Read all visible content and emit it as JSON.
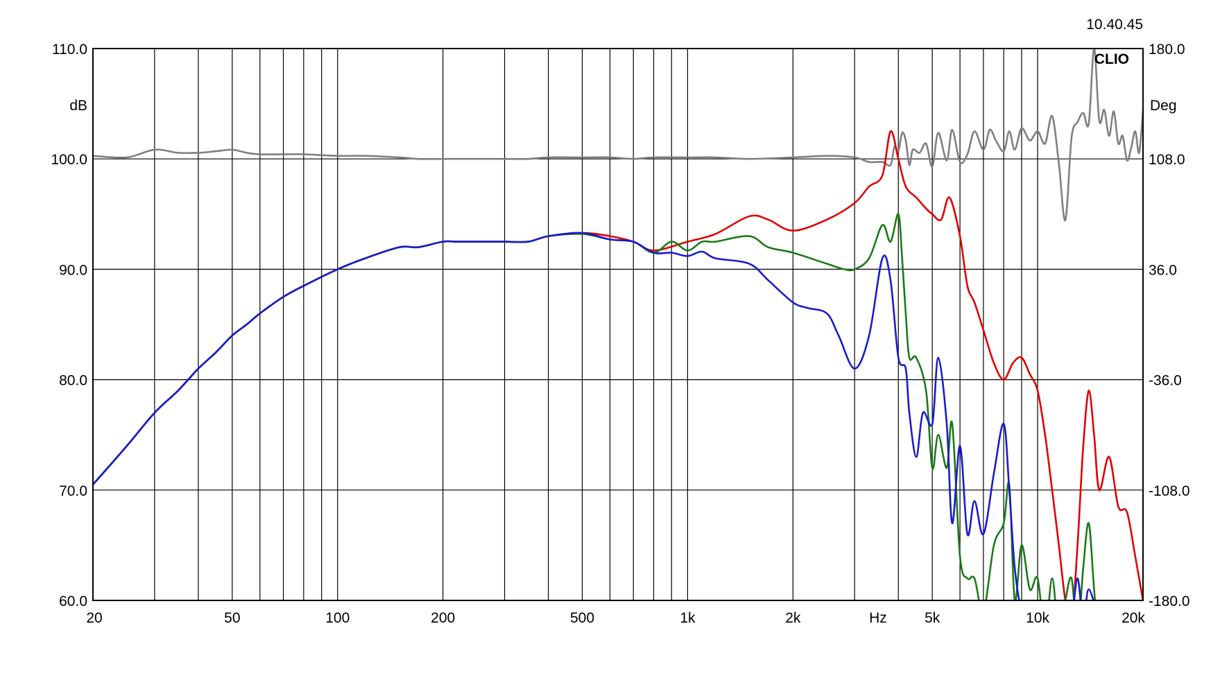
{
  "header": {
    "timestamp": "10.40.45",
    "brand": "CLIO"
  },
  "chart_data": {
    "type": "line",
    "title": "",
    "xlabel": "Hz",
    "ylabel": "dB",
    "y2label": "Deg",
    "xscale": "log",
    "xlim": [
      20,
      20000
    ],
    "ylim": [
      60,
      110
    ],
    "y2lim": [
      -180,
      180
    ],
    "grid": true,
    "x_ticks": [
      {
        "value": 20,
        "label": "20"
      },
      {
        "value": 50,
        "label": "50"
      },
      {
        "value": 100,
        "label": "100"
      },
      {
        "value": 200,
        "label": "200"
      },
      {
        "value": 500,
        "label": "500"
      },
      {
        "value": 1000,
        "label": "1k"
      },
      {
        "value": 2000,
        "label": "2k"
      },
      {
        "value": 5000,
        "label": "5k"
      },
      {
        "value": 10000,
        "label": "10k"
      },
      {
        "value": 20000,
        "label": "20k"
      }
    ],
    "y_ticks": [
      {
        "value": 110,
        "label": "110.0"
      },
      {
        "value": 100,
        "label": "100.0"
      },
      {
        "value": 90,
        "label": "90.0"
      },
      {
        "value": 80,
        "label": "80.0"
      },
      {
        "value": 70,
        "label": "70.0"
      },
      {
        "value": 60,
        "label": "60.0"
      }
    ],
    "y2_ticks": [
      {
        "value": 180,
        "label": "180.0"
      },
      {
        "value": 108,
        "label": "108.0"
      },
      {
        "value": 36,
        "label": "36.0"
      },
      {
        "value": -36,
        "label": "-36.0"
      },
      {
        "value": -108,
        "label": "-108.0"
      },
      {
        "value": -180,
        "label": "-180.0"
      }
    ],
    "series": [
      {
        "color": "#7f7f7f",
        "axis": "right",
        "x": [
          20,
          25,
          30,
          35,
          40,
          45,
          50,
          55,
          60,
          70,
          80,
          100,
          120,
          150,
          170,
          200,
          250,
          300,
          350,
          400,
          500,
          600,
          700,
          800,
          1000,
          1200,
          1500,
          2000,
          2500,
          3000,
          3300,
          3600,
          3800,
          3900,
          4000,
          4100,
          4200,
          4300,
          4400,
          4600,
          4800,
          5000,
          5200,
          5500,
          5700,
          6000,
          6300,
          6600,
          7000,
          7300,
          7600,
          8000,
          8300,
          8600,
          9000,
          9500,
          10000,
          10500,
          11000,
          11500,
          12000,
          12500,
          13000,
          13500,
          14000,
          14500,
          15000,
          15500,
          16000,
          16500,
          17000,
          17500,
          18000,
          18500,
          19000,
          19500,
          20000
        ],
        "y": [
          110,
          109,
          114,
          112,
          112,
          113,
          114,
          112,
          111,
          111,
          111,
          110,
          110,
          109,
          108,
          108,
          108,
          108,
          108,
          109,
          109,
          109,
          108,
          109,
          109,
          109,
          108,
          109,
          110,
          109,
          106,
          106,
          104,
          116,
          113,
          125,
          120,
          104,
          114,
          112,
          118,
          103,
          125,
          107,
          127,
          106,
          111,
          126,
          114,
          127,
          120,
          113,
          126,
          114,
          128,
          120,
          126,
          118,
          136,
          105,
          68,
          122,
          132,
          138,
          131,
          180,
          133,
          140,
          123,
          139,
          118,
          123,
          107,
          115,
          126,
          112,
          140
        ]
      },
      {
        "color": "#e00000",
        "axis": "left",
        "x": [
          20,
          25,
          30,
          35,
          40,
          45,
          50,
          55,
          60,
          70,
          80,
          100,
          120,
          150,
          170,
          200,
          220,
          250,
          300,
          350,
          400,
          500,
          600,
          700,
          800,
          1000,
          1200,
          1500,
          1700,
          2000,
          2500,
          3000,
          3300,
          3600,
          3800,
          4000,
          4200,
          4500,
          4800,
          5000,
          5300,
          5600,
          6000,
          6300,
          6600,
          7000,
          7500,
          8000,
          8500,
          9000,
          9500,
          10000,
          10500,
          11000,
          11500,
          12000,
          12500,
          13000,
          13500,
          14000,
          14500,
          15000,
          16000,
          17000,
          18000,
          19000,
          20000
        ],
        "y": [
          70.5,
          74,
          77,
          79,
          81,
          82.5,
          84,
          85,
          86,
          87.5,
          88.5,
          90,
          91,
          92,
          92,
          92.5,
          92.5,
          92.5,
          92.5,
          92.5,
          93,
          93.3,
          93,
          92.5,
          91.7,
          92.5,
          93.2,
          94.8,
          94.5,
          93.5,
          94.5,
          96,
          97.5,
          98.5,
          102.5,
          100,
          97.5,
          96.5,
          95.5,
          95,
          94.5,
          96.5,
          93,
          88.5,
          87,
          84.5,
          81.5,
          80,
          81.5,
          82,
          80.5,
          79,
          75,
          70,
          65,
          60,
          58,
          65,
          74,
          79,
          75,
          70,
          73,
          68.5,
          68,
          64,
          60
        ]
      },
      {
        "color": "#1a7a1a",
        "axis": "left",
        "x": [
          20,
          25,
          30,
          35,
          40,
          45,
          50,
          55,
          60,
          70,
          80,
          100,
          120,
          150,
          170,
          200,
          220,
          250,
          300,
          350,
          400,
          500,
          600,
          700,
          800,
          900,
          1000,
          1100,
          1200,
          1500,
          1700,
          2000,
          2500,
          2800,
          3000,
          3300,
          3600,
          3800,
          4000,
          4100,
          4200,
          4300,
          4500,
          4800,
          5000,
          5200,
          5500,
          5700,
          6000,
          6300,
          6600,
          7000,
          7500,
          8000,
          8300,
          8600,
          9000,
          9500,
          10000,
          10500,
          11000,
          11500,
          12000,
          12500,
          13000,
          13500,
          14000,
          14500,
          15000,
          16000
        ],
        "y": [
          70.5,
          74,
          77,
          79,
          81,
          82.5,
          84,
          85,
          86,
          87.5,
          88.5,
          90,
          91,
          92,
          92,
          92.5,
          92.5,
          92.5,
          92.5,
          92.5,
          93,
          93.2,
          92.7,
          92.5,
          91.5,
          92.5,
          91.7,
          92.5,
          92.5,
          93,
          92,
          91.5,
          90.5,
          90,
          90,
          91,
          94,
          92.5,
          95,
          91,
          86,
          82,
          82,
          79,
          72,
          75,
          72,
          76,
          64,
          62,
          62,
          59,
          65,
          67,
          70.5,
          60,
          65,
          61,
          62,
          57,
          62,
          57,
          60,
          62,
          57,
          63,
          67,
          61,
          56,
          55
        ]
      },
      {
        "color": "#1a1acc",
        "axis": "left",
        "x": [
          20,
          25,
          30,
          35,
          40,
          45,
          50,
          55,
          60,
          70,
          80,
          100,
          120,
          150,
          170,
          200,
          220,
          250,
          300,
          350,
          400,
          500,
          600,
          700,
          800,
          900,
          1000,
          1100,
          1200,
          1500,
          1700,
          2000,
          2200,
          2500,
          2700,
          3000,
          3300,
          3600,
          3800,
          4000,
          4200,
          4300,
          4500,
          4700,
          5000,
          5200,
          5500,
          5700,
          6000,
          6300,
          6600,
          7000,
          7500,
          8000,
          8300,
          8600,
          9000,
          9500,
          10000,
          10500,
          11000,
          11500,
          12000,
          12500,
          13000,
          13500,
          14000,
          15000
        ],
        "y": [
          70.5,
          74,
          77,
          79,
          81,
          82.5,
          84,
          85,
          86,
          87.5,
          88.5,
          90,
          91,
          92,
          92,
          92.5,
          92.5,
          92.5,
          92.5,
          92.5,
          93,
          93.3,
          92.7,
          92.5,
          91.5,
          91.5,
          91.2,
          91.6,
          91,
          90.5,
          89,
          87,
          86.5,
          86,
          84,
          81,
          84,
          91,
          89,
          82,
          81,
          77,
          73,
          77,
          76,
          82,
          76,
          67,
          74,
          66,
          69,
          66,
          71.5,
          76,
          70,
          63,
          59,
          58,
          59,
          58,
          57,
          59,
          56,
          58,
          62,
          58,
          61,
          58
        ]
      }
    ]
  }
}
